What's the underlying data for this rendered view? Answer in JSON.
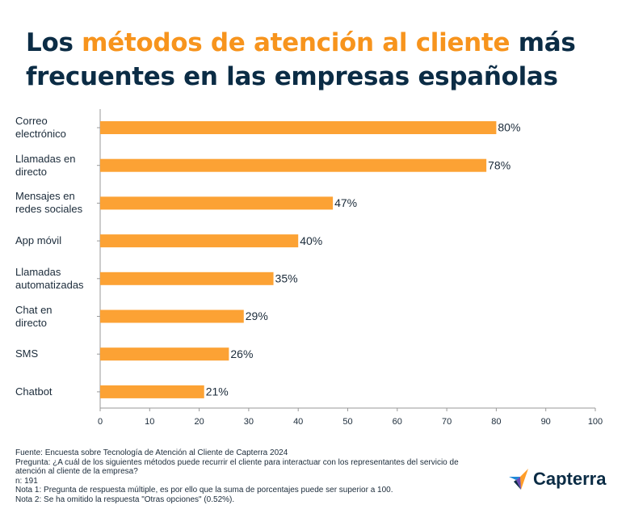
{
  "chart_data": {
    "type": "bar",
    "orientation": "horizontal",
    "title_parts": [
      "Los",
      "métodos de atención al cliente",
      "más",
      "frecuentes en las empresas españolas"
    ],
    "categories": [
      "Correo electrónico",
      "Llamadas en directo",
      "Mensajes en redes sociales",
      "App móvil",
      "Llamadas automatizadas",
      "Chat en directo",
      "SMS",
      "Chatbot"
    ],
    "values": [
      80,
      78,
      47,
      40,
      35,
      29,
      26,
      21
    ],
    "value_labels": [
      "80%",
      "78%",
      "47%",
      "40%",
      "35%",
      "29%",
      "26%",
      "21%"
    ],
    "color": "#fca234",
    "xlim": [
      0,
      100
    ],
    "xticks": [
      0,
      10,
      20,
      30,
      40,
      50,
      60,
      70,
      80,
      90,
      100
    ],
    "footnotes": [
      "Fuente: Encuesta sobre Tecnología de Atención al Cliente de Capterra 2024",
      "Pregunta: ¿A cuál de los siguientes métodos puede recurrir el cliente para interactuar con los representantes del servicio de atención al cliente de la empresa?",
      "n: 191",
      "Nota 1: Pregunta de respuesta múltiple, es por ello que la suma de porcentajes puede ser superior a 100.",
      "Nota 2: Se ha omitido la respuesta \"Otras opciones\" (0.52%)."
    ],
    "logo": "Capterra"
  }
}
